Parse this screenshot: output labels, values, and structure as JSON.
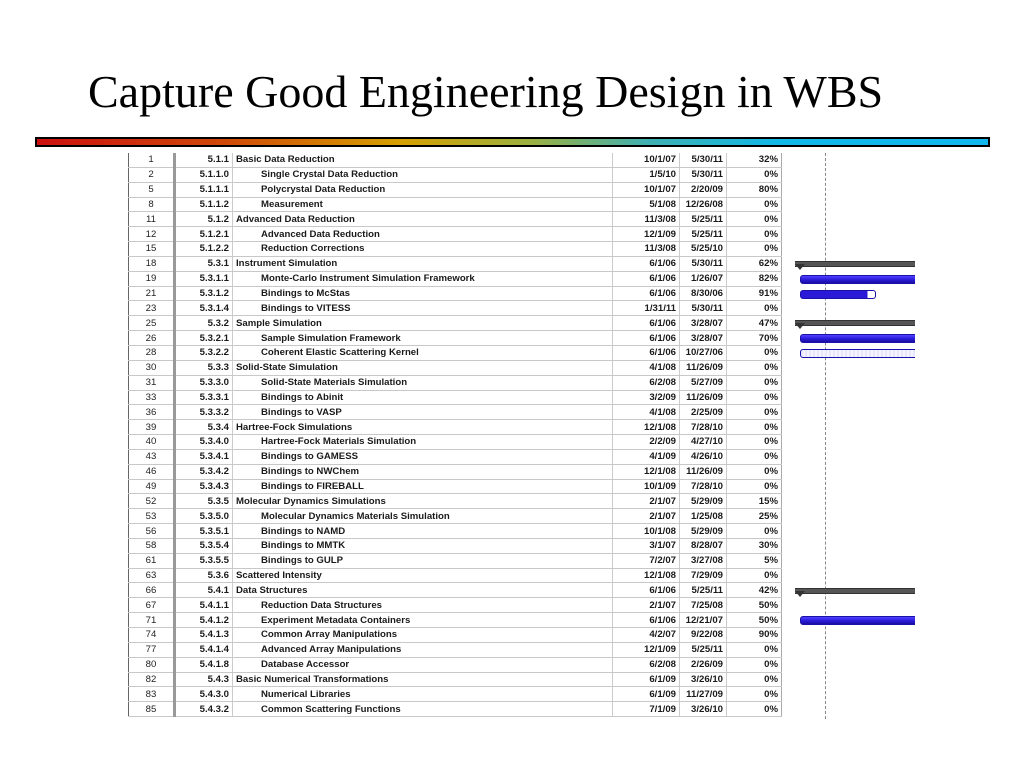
{
  "slide": {
    "title": "Capture Good Engineering Design in WBS",
    "accent_gradient": [
      "#cc1010",
      "#d6a000",
      "#40b0b0",
      "#10b8ee"
    ]
  },
  "wbs_table": {
    "rows": [
      {
        "id": "1",
        "wbs": "5.1.1",
        "name": "Basic Data Reduction",
        "level": 1,
        "start": "10/1/07",
        "finish": "5/30/11",
        "pct": "32%"
      },
      {
        "id": "2",
        "wbs": "5.1.1.0",
        "name": "Single Crystal Data Reduction",
        "level": 2,
        "start": "1/5/10",
        "finish": "5/30/11",
        "pct": "0%"
      },
      {
        "id": "5",
        "wbs": "5.1.1.1",
        "name": "Polycrystal Data Reduction",
        "level": 2,
        "start": "10/1/07",
        "finish": "2/20/09",
        "pct": "80%"
      },
      {
        "id": "8",
        "wbs": "5.1.1.2",
        "name": "Measurement",
        "level": 2,
        "start": "5/1/08",
        "finish": "12/26/08",
        "pct": "0%"
      },
      {
        "id": "11",
        "wbs": "5.1.2",
        "name": "Advanced Data Reduction",
        "level": 1,
        "start": "11/3/08",
        "finish": "5/25/11",
        "pct": "0%"
      },
      {
        "id": "12",
        "wbs": "5.1.2.1",
        "name": "Advanced Data Reduction",
        "level": 2,
        "start": "12/1/09",
        "finish": "5/25/11",
        "pct": "0%"
      },
      {
        "id": "15",
        "wbs": "5.1.2.2",
        "name": "Reduction Corrections",
        "level": 2,
        "start": "11/3/08",
        "finish": "5/25/10",
        "pct": "0%"
      },
      {
        "id": "18",
        "wbs": "5.3.1",
        "name": "Instrument Simulation",
        "level": 1,
        "start": "6/1/06",
        "finish": "5/30/11",
        "pct": "62%",
        "gantt": "summary"
      },
      {
        "id": "19",
        "wbs": "5.3.1.1",
        "name": "Monte-Carlo Instrument Simulation Framework",
        "level": 2,
        "start": "6/1/06",
        "finish": "1/26/07",
        "pct": "82%",
        "gantt": "bar"
      },
      {
        "id": "21",
        "wbs": "5.3.1.2",
        "name": "Bindings to McStas",
        "level": 2,
        "start": "6/1/06",
        "finish": "8/30/06",
        "pct": "91%",
        "gantt": "bar-short"
      },
      {
        "id": "23",
        "wbs": "5.3.1.4",
        "name": "Bindings to VITESS",
        "level": 2,
        "start": "1/31/11",
        "finish": "5/30/11",
        "pct": "0%"
      },
      {
        "id": "25",
        "wbs": "5.3.2",
        "name": "Sample Simulation",
        "level": 1,
        "start": "6/1/06",
        "finish": "3/28/07",
        "pct": "47%",
        "gantt": "summary"
      },
      {
        "id": "26",
        "wbs": "5.3.2.1",
        "name": "Sample Simulation Framework",
        "level": 2,
        "start": "6/1/06",
        "finish": "3/28/07",
        "pct": "70%",
        "gantt": "bar"
      },
      {
        "id": "28",
        "wbs": "5.3.2.2",
        "name": "Coherent Elastic Scattering Kernel",
        "level": 2,
        "start": "6/1/06",
        "finish": "10/27/06",
        "pct": "0%",
        "gantt": "bar-empty"
      },
      {
        "id": "30",
        "wbs": "5.3.3",
        "name": "Solid-State Simulation",
        "level": 1,
        "start": "4/1/08",
        "finish": "11/26/09",
        "pct": "0%"
      },
      {
        "id": "31",
        "wbs": "5.3.3.0",
        "name": "Solid-State Materials Simulation",
        "level": 2,
        "start": "6/2/08",
        "finish": "5/27/09",
        "pct": "0%"
      },
      {
        "id": "33",
        "wbs": "5.3.3.1",
        "name": "Bindings to Abinit",
        "level": 2,
        "start": "3/2/09",
        "finish": "11/26/09",
        "pct": "0%"
      },
      {
        "id": "36",
        "wbs": "5.3.3.2",
        "name": "Bindings to VASP",
        "level": 2,
        "start": "4/1/08",
        "finish": "2/25/09",
        "pct": "0%"
      },
      {
        "id": "39",
        "wbs": "5.3.4",
        "name": "Hartree-Fock Simulations",
        "level": 1,
        "start": "12/1/08",
        "finish": "7/28/10",
        "pct": "0%"
      },
      {
        "id": "40",
        "wbs": "5.3.4.0",
        "name": "Hartree-Fock Materials Simulation",
        "level": 2,
        "start": "2/2/09",
        "finish": "4/27/10",
        "pct": "0%"
      },
      {
        "id": "43",
        "wbs": "5.3.4.1",
        "name": "Bindings to GAMESS",
        "level": 2,
        "start": "4/1/09",
        "finish": "4/26/10",
        "pct": "0%"
      },
      {
        "id": "46",
        "wbs": "5.3.4.2",
        "name": "Bindings to NWChem",
        "level": 2,
        "start": "12/1/08",
        "finish": "11/26/09",
        "pct": "0%"
      },
      {
        "id": "49",
        "wbs": "5.3.4.3",
        "name": "Bindings to FIREBALL",
        "level": 2,
        "start": "10/1/09",
        "finish": "7/28/10",
        "pct": "0%"
      },
      {
        "id": "52",
        "wbs": "5.3.5",
        "name": "Molecular Dynamics Simulations",
        "level": 1,
        "start": "2/1/07",
        "finish": "5/29/09",
        "pct": "15%"
      },
      {
        "id": "53",
        "wbs": "5.3.5.0",
        "name": "Molecular Dynamics Materials Simulation",
        "level": 2,
        "start": "2/1/07",
        "finish": "1/25/08",
        "pct": "25%"
      },
      {
        "id": "56",
        "wbs": "5.3.5.1",
        "name": "Bindings to NAMD",
        "level": 2,
        "start": "10/1/08",
        "finish": "5/29/09",
        "pct": "0%"
      },
      {
        "id": "58",
        "wbs": "5.3.5.4",
        "name": "Bindings to MMTK",
        "level": 2,
        "start": "3/1/07",
        "finish": "8/28/07",
        "pct": "30%"
      },
      {
        "id": "61",
        "wbs": "5.3.5.5",
        "name": "Bindings to GULP",
        "level": 2,
        "start": "7/2/07",
        "finish": "3/27/08",
        "pct": "5%"
      },
      {
        "id": "63",
        "wbs": "5.3.6",
        "name": "Scattered Intensity",
        "level": 1,
        "start": "12/1/08",
        "finish": "7/29/09",
        "pct": "0%"
      },
      {
        "id": "66",
        "wbs": "5.4.1",
        "name": "Data Structures",
        "level": 1,
        "start": "6/1/06",
        "finish": "5/25/11",
        "pct": "42%",
        "gantt": "summary"
      },
      {
        "id": "67",
        "wbs": "5.4.1.1",
        "name": "Reduction Data Structures",
        "level": 2,
        "start": "2/1/07",
        "finish": "7/25/08",
        "pct": "50%"
      },
      {
        "id": "71",
        "wbs": "5.4.1.2",
        "name": "Experiment Metadata Containers",
        "level": 2,
        "start": "6/1/06",
        "finish": "12/21/07",
        "pct": "50%",
        "gantt": "bar"
      },
      {
        "id": "74",
        "wbs": "5.4.1.3",
        "name": "Common Array Manipulations",
        "level": 2,
        "start": "4/2/07",
        "finish": "9/22/08",
        "pct": "90%"
      },
      {
        "id": "77",
        "wbs": "5.4.1.4",
        "name": "Advanced Array Manipulations",
        "level": 2,
        "start": "12/1/09",
        "finish": "5/25/11",
        "pct": "0%"
      },
      {
        "id": "80",
        "wbs": "5.4.1.8",
        "name": "Database Accessor",
        "level": 2,
        "start": "6/2/08",
        "finish": "2/26/09",
        "pct": "0%"
      },
      {
        "id": "82",
        "wbs": "5.4.3",
        "name": "Basic Numerical Transformations",
        "level": 1,
        "start": "6/1/09",
        "finish": "3/26/10",
        "pct": "0%"
      },
      {
        "id": "83",
        "wbs": "5.4.3.0",
        "name": "Numerical Libraries",
        "level": 2,
        "start": "6/1/09",
        "finish": "11/27/09",
        "pct": "0%"
      },
      {
        "id": "85",
        "wbs": "5.4.3.2",
        "name": "Common Scattering Functions",
        "level": 2,
        "start": "7/1/09",
        "finish": "3/26/10",
        "pct": "0%"
      }
    ]
  }
}
